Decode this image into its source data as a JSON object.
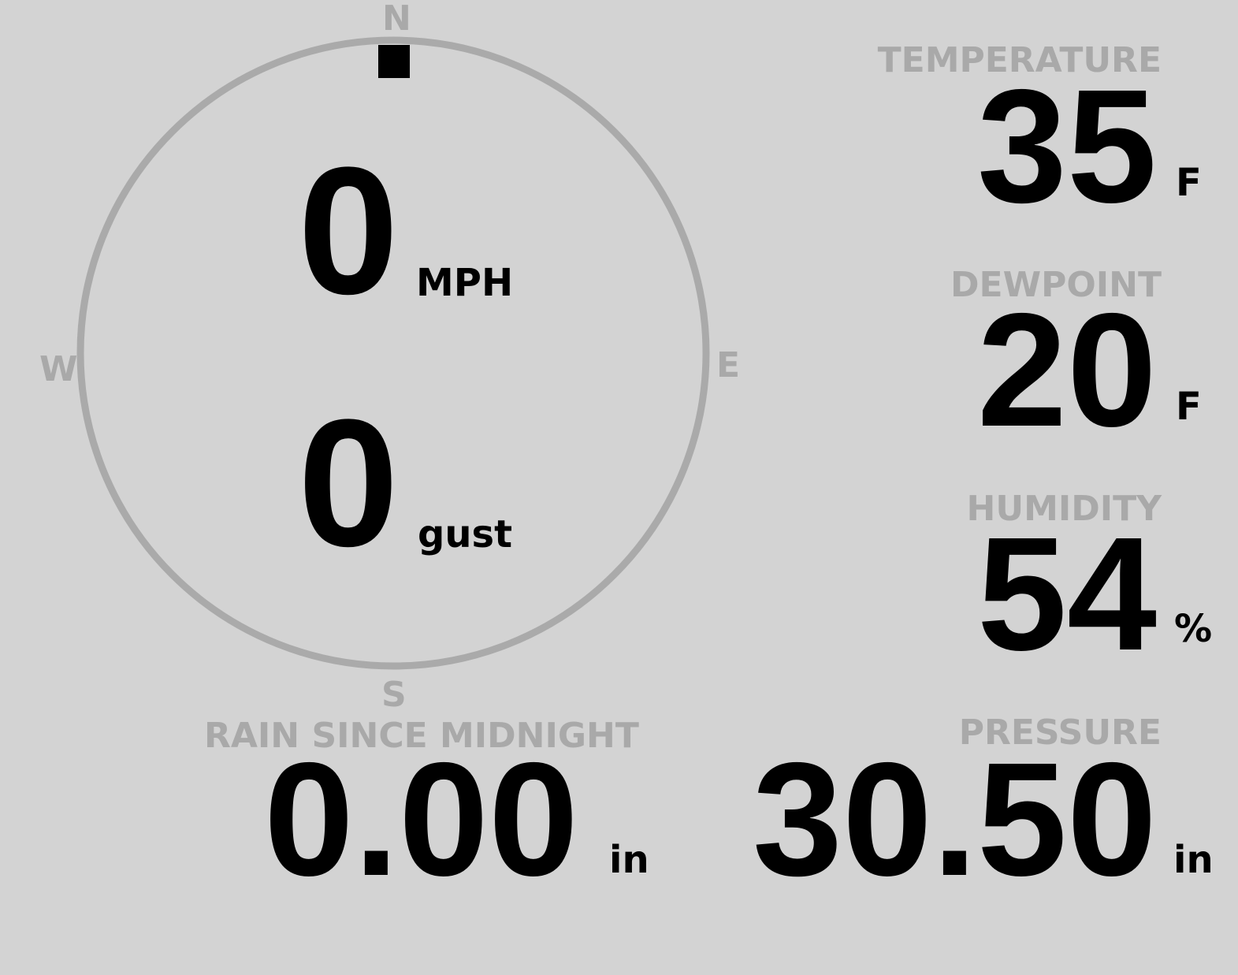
{
  "wind": {
    "speed": "0",
    "speed_unit": "MPH",
    "gust": "0",
    "gust_unit": "gust",
    "direction_deg": 0,
    "cardinals": {
      "n": "N",
      "e": "E",
      "s": "S",
      "w": "W"
    }
  },
  "temperature": {
    "label": "TEMPERATURE",
    "value": "35",
    "unit": "F"
  },
  "dewpoint": {
    "label": "DEWPOINT",
    "value": "20",
    "unit": "F"
  },
  "humidity": {
    "label": "HUMIDITY",
    "value": "54",
    "unit": "%"
  },
  "rain": {
    "label": "RAIN SINCE MIDNIGHT",
    "value": "0.00",
    "unit": "in"
  },
  "pressure": {
    "label": "PRESSURE",
    "value": "30.50",
    "unit": "in"
  },
  "colors": {
    "background": "#d3d3d3",
    "label": "#a9a9a9",
    "value": "#000000",
    "compass": "#aaaaaa"
  }
}
